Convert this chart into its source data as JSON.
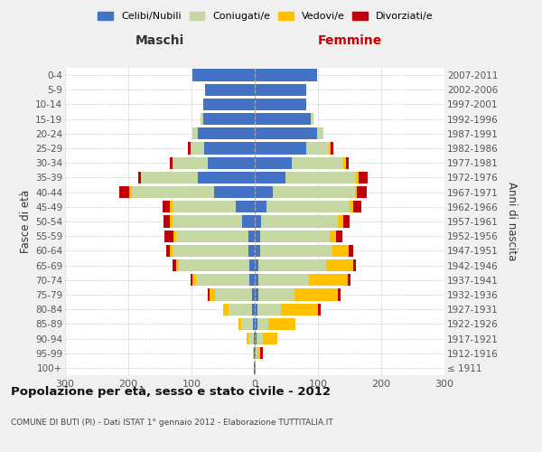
{
  "age_groups": [
    "100+",
    "95-99",
    "90-94",
    "85-89",
    "80-84",
    "75-79",
    "70-74",
    "65-69",
    "60-64",
    "55-59",
    "50-54",
    "45-49",
    "40-44",
    "35-39",
    "30-34",
    "25-29",
    "20-24",
    "15-19",
    "10-14",
    "5-9",
    "0-4"
  ],
  "birth_years": [
    "≤ 1911",
    "1912-1916",
    "1917-1921",
    "1922-1926",
    "1927-1931",
    "1932-1936",
    "1937-1941",
    "1942-1946",
    "1947-1951",
    "1952-1956",
    "1957-1961",
    "1962-1966",
    "1967-1971",
    "1972-1976",
    "1977-1981",
    "1982-1986",
    "1987-1991",
    "1992-1996",
    "1997-2001",
    "2002-2006",
    "2007-2011"
  ],
  "males_celibi": [
    1,
    1,
    2,
    3,
    4,
    5,
    8,
    8,
    10,
    10,
    20,
    30,
    65,
    90,
    75,
    80,
    90,
    82,
    82,
    78,
    98
  ],
  "males_coniugati": [
    1,
    2,
    8,
    18,
    38,
    58,
    85,
    112,
    120,
    115,
    110,
    100,
    130,
    90,
    55,
    22,
    8,
    4,
    0,
    0,
    0
  ],
  "males_vedovi": [
    0,
    0,
    3,
    5,
    8,
    8,
    5,
    5,
    5,
    4,
    4,
    4,
    4,
    0,
    0,
    0,
    0,
    0,
    0,
    0,
    0
  ],
  "males_divorziati": [
    0,
    0,
    0,
    0,
    0,
    4,
    4,
    5,
    5,
    14,
    10,
    12,
    15,
    5,
    5,
    4,
    0,
    0,
    0,
    0,
    0
  ],
  "females_nubili": [
    1,
    1,
    3,
    4,
    4,
    5,
    5,
    5,
    8,
    8,
    10,
    18,
    28,
    48,
    58,
    82,
    98,
    88,
    82,
    82,
    98
  ],
  "females_coniugate": [
    1,
    3,
    10,
    18,
    38,
    58,
    80,
    108,
    115,
    110,
    122,
    132,
    130,
    112,
    82,
    35,
    10,
    5,
    0,
    0,
    0
  ],
  "females_vedove": [
    0,
    5,
    22,
    42,
    58,
    68,
    62,
    42,
    25,
    10,
    8,
    5,
    4,
    4,
    4,
    3,
    0,
    0,
    0,
    0,
    0
  ],
  "females_divorziate": [
    0,
    4,
    0,
    0,
    4,
    4,
    4,
    5,
    8,
    10,
    10,
    14,
    15,
    14,
    5,
    4,
    0,
    0,
    0,
    0,
    0
  ],
  "colors": {
    "celibi": "#4472c4",
    "coniugati": "#c5d8a4",
    "vedovi": "#ffc000",
    "divorziati": "#c0000a"
  },
  "xlim": 300,
  "title": "Popolazione per età, sesso e stato civile - 2012",
  "subtitle": "COMUNE DI BUTI (PI) - Dati ISTAT 1° gennaio 2012 - Elaborazione TUTTITALIA.IT",
  "ylabel_left": "Fasce di età",
  "ylabel_right": "Anni di nascita",
  "header_maschi": "Maschi",
  "header_femmine": "Femmine",
  "bg_color": "#f0f0f0",
  "plot_bg": "#ffffff",
  "legend_labels": [
    "Celibi/Nubili",
    "Coniugati/e",
    "Vedovi/e",
    "Divorziati/e"
  ]
}
